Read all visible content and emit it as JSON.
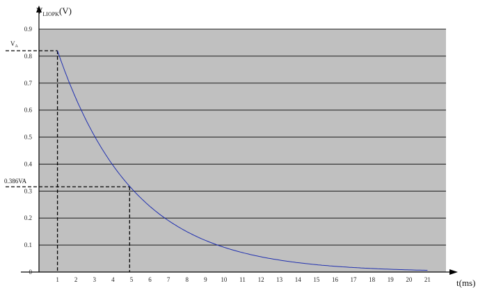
{
  "chart_data": {
    "type": "line",
    "title": "",
    "ylabel": {
      "main": "V",
      "sub": "LIOPK",
      "unit": "(V)"
    },
    "xlabel": "t(ms)",
    "x_ticks": [
      "1",
      "2",
      "3",
      "4",
      "5",
      "6",
      "7",
      "8",
      "9",
      "10",
      "11",
      "12",
      "13",
      "14",
      "15",
      "16",
      "17",
      "18",
      "19",
      "20",
      "21"
    ],
    "y_ticks": [
      "0",
      "0.1",
      "0.2",
      "0.3",
      "0.4",
      "0.5",
      "0.6",
      "0.7",
      "0.8",
      "0.9"
    ],
    "xlim": [
      0,
      22
    ],
    "ylim": [
      0,
      0.9
    ],
    "grid": "horizontal",
    "background_color": "#c0c0c0",
    "line_color": "#1f2fb0",
    "series": [
      {
        "x": [
          1,
          2,
          3,
          4,
          5,
          6,
          7,
          8,
          9,
          10,
          11,
          12,
          13,
          14,
          15,
          16,
          17,
          18,
          19,
          20,
          21
        ],
        "values": [
          0.82,
          0.64,
          0.5,
          0.39,
          0.31,
          0.24,
          0.19,
          0.15,
          0.12,
          0.09,
          0.07,
          0.055,
          0.045,
          0.035,
          0.028,
          0.023,
          0.018,
          0.014,
          0.011,
          0.009,
          0.007
        ]
      }
    ],
    "annotations": [
      {
        "label_main": "V",
        "label_sub": "A",
        "x": 1,
        "y": 0.82
      },
      {
        "label": "0.386VA",
        "x": 4.9,
        "y": 0.316
      }
    ]
  }
}
